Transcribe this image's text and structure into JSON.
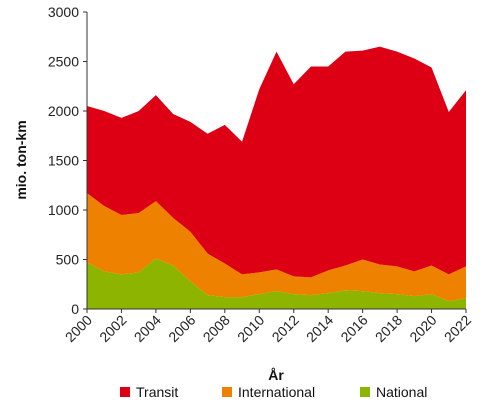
{
  "chart_data": {
    "type": "area",
    "stacked": true,
    "title": "",
    "xlabel": "År",
    "ylabel": "mio. ton-km",
    "ylim": [
      0,
      3000
    ],
    "yticks": [
      0,
      500,
      1000,
      1500,
      2000,
      2500,
      3000
    ],
    "xlim": [
      2000,
      2022
    ],
    "xticks": [
      2000,
      2002,
      2004,
      2006,
      2008,
      2010,
      2012,
      2014,
      2016,
      2018,
      2020,
      2022
    ],
    "grid": false,
    "legend_position": "bottom",
    "x": [
      2000,
      2001,
      2002,
      2003,
      2004,
      2005,
      2006,
      2007,
      2008,
      2009,
      2010,
      2011,
      2012,
      2013,
      2014,
      2015,
      2016,
      2017,
      2018,
      2019,
      2020,
      2021,
      2022
    ],
    "series": [
      {
        "name": "National",
        "color": "#8DB500",
        "values": [
          470,
          380,
          350,
          370,
          510,
          440,
          280,
          140,
          120,
          120,
          150,
          180,
          150,
          140,
          160,
          190,
          180,
          160,
          150,
          130,
          150,
          80,
          110
        ]
      },
      {
        "name": "International",
        "color": "#EE8100",
        "values": [
          700,
          660,
          600,
          600,
          580,
          480,
          500,
          420,
          340,
          230,
          220,
          220,
          180,
          180,
          230,
          250,
          320,
          290,
          280,
          250,
          290,
          270,
          320
        ]
      },
      {
        "name": "Transit",
        "color": "#DD0015",
        "values": [
          880,
          960,
          980,
          1030,
          1070,
          1050,
          1110,
          1210,
          1400,
          1340,
          1850,
          2200,
          1940,
          2130,
          2060,
          2160,
          2110,
          2200,
          2170,
          2150,
          2000,
          1640,
          1780
        ]
      }
    ],
    "legend_order": [
      "Transit",
      "International",
      "National"
    ]
  }
}
